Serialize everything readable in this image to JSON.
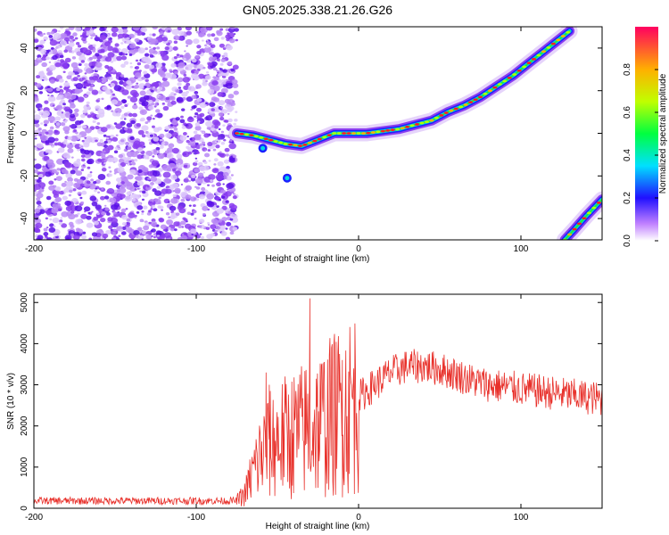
{
  "title": "GN05.2025.338.21.26.G26",
  "colors": {
    "snr_line": "#e8302a",
    "noise": "#8a3cf0",
    "axis": "#000000"
  },
  "chart_data": [
    {
      "type": "heatmap",
      "name": "spectrogram",
      "xlabel": "Height of straight line (km)",
      "ylabel": "Frequency (Hz)",
      "xlim": [
        -200,
        150
      ],
      "ylim": [
        -50,
        50
      ],
      "x_ticks": [
        -200,
        -100,
        0,
        100
      ],
      "y_ticks": [
        -40,
        -20,
        0,
        20,
        40
      ],
      "noise_region_x": [
        -200,
        -75
      ],
      "colorbar": {
        "label": "Normalized spectral amplitude",
        "range": [
          0,
          1
        ],
        "ticks": [
          0.0,
          0.2,
          0.4,
          0.6,
          0.8
        ]
      },
      "ridges": [
        {
          "name": "main-trace",
          "x": [
            -75,
            -65,
            -55,
            -45,
            -35,
            -25,
            -15,
            -5,
            5,
            15,
            25,
            35,
            45,
            55,
            65,
            75,
            85,
            95,
            105,
            115,
            125,
            130
          ],
          "y": [
            0,
            -1,
            -3,
            -5,
            -6,
            -3,
            0,
            0,
            0,
            1,
            2,
            4,
            6,
            10,
            13,
            17,
            22,
            27,
            33,
            39,
            45,
            48
          ]
        },
        {
          "name": "alias-trace",
          "x": [
            127,
            133,
            140,
            150
          ],
          "y": [
            -50,
            -45,
            -39,
            -31
          ]
        }
      ],
      "blobs": [
        {
          "x": -59,
          "y": -7
        },
        {
          "x": -44,
          "y": -21
        }
      ]
    },
    {
      "type": "line",
      "name": "snr",
      "xlabel": "Height of straight line (km)",
      "ylabel": "SNR (10 * v/v)",
      "xlim": [
        -200,
        150
      ],
      "ylim": [
        0,
        5200
      ],
      "x_ticks": [
        -200,
        -100,
        0,
        100
      ],
      "y_ticks": [
        0,
        1000,
        2000,
        3000,
        4000,
        5000
      ],
      "envelope": {
        "x": [
          -200,
          -75,
          -70,
          -65,
          -60,
          -55,
          -50,
          -40,
          -30,
          -20,
          -10,
          0,
          10,
          20,
          30,
          40,
          50,
          60,
          70,
          80,
          90,
          100,
          110,
          120,
          130,
          140,
          150
        ],
        "y": [
          180,
          180,
          350,
          900,
          1300,
          1500,
          1650,
          1800,
          1950,
          2150,
          2400,
          2700,
          3000,
          3300,
          3450,
          3450,
          3380,
          3250,
          3100,
          3000,
          2950,
          2900,
          2850,
          2800,
          2750,
          2700,
          2650
        ]
      },
      "spikes": [
        {
          "x": -57,
          "y": 3300
        },
        {
          "x": -55,
          "y": 3000
        },
        {
          "x": -30,
          "y": 5100
        },
        {
          "x": -18,
          "y": 3700
        },
        {
          "x": -10,
          "y": 3600
        }
      ]
    }
  ]
}
